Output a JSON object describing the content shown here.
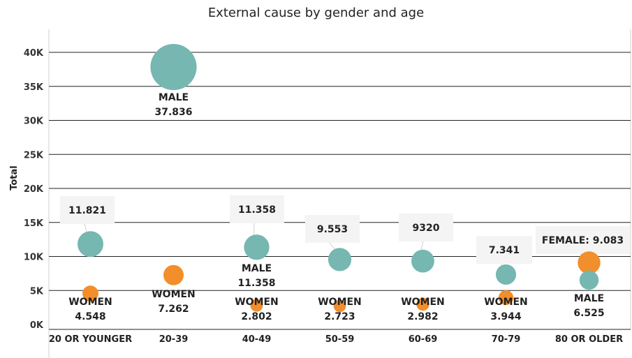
{
  "chart_data": {
    "type": "scatter",
    "title": "External cause by gender and age",
    "ylabel": "Total",
    "xlabel": "",
    "ylim": [
      0,
      43000
    ],
    "yticks": [
      {
        "value": 0,
        "label": "0K"
      },
      {
        "value": 5000,
        "label": "5K"
      },
      {
        "value": 10000,
        "label": "10K"
      },
      {
        "value": 15000,
        "label": "15K"
      },
      {
        "value": 20000,
        "label": "20K"
      },
      {
        "value": 25000,
        "label": "25K"
      },
      {
        "value": 30000,
        "label": "30K"
      },
      {
        "value": 35000,
        "label": "35K"
      },
      {
        "value": 40000,
        "label": "40K"
      }
    ],
    "categories": [
      "20 OR YOUNGER",
      "20-39",
      "40-49",
      "50-59",
      "60-69",
      "70-79",
      "80 OR OLDER"
    ],
    "colors": {
      "male": "#76b7b2",
      "female": "#f28e2b",
      "label_box": "#f4f4f4"
    },
    "points": [
      {
        "category": "20 OR YOUNGER",
        "gender": "male",
        "value": 11821,
        "label": "11.821"
      },
      {
        "category": "20 OR YOUNGER",
        "gender": "female",
        "value": 4548,
        "label": "WOMEN\n4.548"
      },
      {
        "category": "20-39",
        "gender": "male",
        "value": 37836,
        "label": "MALE\n37.836"
      },
      {
        "category": "20-39",
        "gender": "female",
        "value": 7262,
        "label": "WOMEN\n7.262"
      },
      {
        "category": "40-49",
        "gender": "male",
        "value": 11358,
        "label": "11.358"
      },
      {
        "category": "40-49",
        "gender": "male",
        "value": 11358,
        "label": "MALE\n11.358"
      },
      {
        "category": "40-49",
        "gender": "female",
        "value": 2802,
        "label": "WOMEN\n2.802"
      },
      {
        "category": "50-59",
        "gender": "male",
        "value": 9553,
        "label": "9.553"
      },
      {
        "category": "50-59",
        "gender": "female",
        "value": 2723,
        "label": "WOMEN\n2.723"
      },
      {
        "category": "60-69",
        "gender": "male",
        "value": 9320,
        "label": "9320"
      },
      {
        "category": "60-69",
        "gender": "female",
        "value": 2982,
        "label": "WOMEN\n2.982"
      },
      {
        "category": "70-79",
        "gender": "male",
        "value": 7341,
        "label": "7.341"
      },
      {
        "category": "70-79",
        "gender": "female",
        "value": 3944,
        "label": "WOMEN\n3.944"
      },
      {
        "category": "80 OR OLDER",
        "gender": "female",
        "value": 9083,
        "label": "FEMALE: 9.083"
      },
      {
        "category": "80 OR OLDER",
        "gender": "male",
        "value": 6525,
        "label": "MALE\n6.525"
      }
    ],
    "grid": true,
    "legend": "none"
  }
}
